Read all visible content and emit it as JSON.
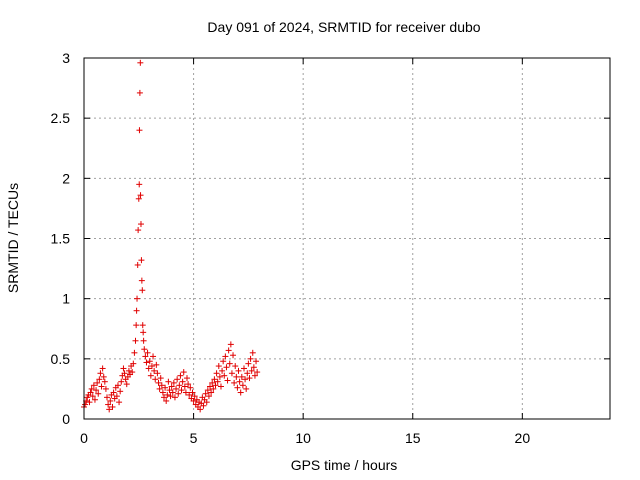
{
  "chart_data": {
    "type": "scatter",
    "title": "Day 091 of 2024, SRMTID for receiver dubo",
    "xlabel": "GPS time / hours",
    "ylabel": "SRMTID / TECUs",
    "xlim": [
      0,
      24
    ],
    "ylim": [
      0,
      3
    ],
    "xticks": [
      0,
      5,
      10,
      15,
      20
    ],
    "yticks": [
      0,
      0.5,
      1,
      1.5,
      2,
      2.5,
      3
    ],
    "ytick_labels": [
      "0",
      "0.5",
      "1",
      "1.5",
      "2",
      "2.5",
      "3"
    ],
    "grid": true,
    "marker": "+",
    "color": "#e00000",
    "series": [
      {
        "name": "SRMTID",
        "points": [
          [
            0.0,
            0.1
          ],
          [
            0.05,
            0.12
          ],
          [
            0.1,
            0.15
          ],
          [
            0.15,
            0.18
          ],
          [
            0.2,
            0.2
          ],
          [
            0.25,
            0.14
          ],
          [
            0.3,
            0.22
          ],
          [
            0.35,
            0.25
          ],
          [
            0.4,
            0.19
          ],
          [
            0.45,
            0.28
          ],
          [
            0.5,
            0.16
          ],
          [
            0.55,
            0.24
          ],
          [
            0.6,
            0.3
          ],
          [
            0.65,
            0.21
          ],
          [
            0.7,
            0.33
          ],
          [
            0.75,
            0.38
          ],
          [
            0.8,
            0.27
          ],
          [
            0.85,
            0.42
          ],
          [
            0.9,
            0.35
          ],
          [
            0.95,
            0.31
          ],
          [
            1.0,
            0.25
          ],
          [
            1.05,
            0.18
          ],
          [
            1.1,
            0.12
          ],
          [
            1.15,
            0.08
          ],
          [
            1.2,
            0.15
          ],
          [
            1.25,
            0.2
          ],
          [
            1.3,
            0.1
          ],
          [
            1.35,
            0.22
          ],
          [
            1.4,
            0.17
          ],
          [
            1.45,
            0.26
          ],
          [
            1.5,
            0.19
          ],
          [
            1.55,
            0.28
          ],
          [
            1.6,
            0.14
          ],
          [
            1.65,
            0.23
          ],
          [
            1.7,
            0.31
          ],
          [
            1.75,
            0.36
          ],
          [
            1.8,
            0.42
          ],
          [
            1.85,
            0.38
          ],
          [
            1.9,
            0.33
          ],
          [
            1.95,
            0.29
          ],
          [
            2.0,
            0.35
          ],
          [
            2.05,
            0.4
          ],
          [
            2.1,
            0.37
          ],
          [
            2.15,
            0.44
          ],
          [
            2.2,
            0.39
          ],
          [
            2.25,
            0.46
          ],
          [
            2.3,
            0.55
          ],
          [
            2.35,
            0.65
          ],
          [
            2.38,
            0.78
          ],
          [
            2.4,
            0.9
          ],
          [
            2.42,
            1.0
          ],
          [
            2.45,
            1.28
          ],
          [
            2.47,
            1.57
          ],
          [
            2.5,
            1.83
          ],
          [
            2.52,
            1.95
          ],
          [
            2.53,
            2.4
          ],
          [
            2.55,
            2.71
          ],
          [
            2.57,
            2.96
          ],
          [
            2.58,
            1.86
          ],
          [
            2.6,
            1.62
          ],
          [
            2.62,
            1.32
          ],
          [
            2.64,
            1.15
          ],
          [
            2.66,
            1.07
          ],
          [
            2.68,
            0.78
          ],
          [
            2.7,
            0.72
          ],
          [
            2.72,
            0.65
          ],
          [
            2.75,
            0.58
          ],
          [
            2.8,
            0.52
          ],
          [
            2.85,
            0.47
          ],
          [
            2.9,
            0.55
          ],
          [
            2.95,
            0.42
          ],
          [
            3.0,
            0.48
          ],
          [
            3.05,
            0.36
          ],
          [
            3.1,
            0.44
          ],
          [
            3.15,
            0.52
          ],
          [
            3.2,
            0.4
          ],
          [
            3.25,
            0.33
          ],
          [
            3.3,
            0.45
          ],
          [
            3.35,
            0.38
          ],
          [
            3.4,
            0.3
          ],
          [
            3.45,
            0.25
          ],
          [
            3.5,
            0.34
          ],
          [
            3.55,
            0.28
          ],
          [
            3.6,
            0.22
          ],
          [
            3.65,
            0.18
          ],
          [
            3.7,
            0.26
          ],
          [
            3.75,
            0.15
          ],
          [
            3.8,
            0.2
          ],
          [
            3.85,
            0.31
          ],
          [
            3.9,
            0.24
          ],
          [
            3.95,
            0.19
          ],
          [
            4.0,
            0.27
          ],
          [
            4.05,
            0.22
          ],
          [
            4.1,
            0.3
          ],
          [
            4.15,
            0.18
          ],
          [
            4.2,
            0.25
          ],
          [
            4.25,
            0.33
          ],
          [
            4.3,
            0.21
          ],
          [
            4.35,
            0.28
          ],
          [
            4.4,
            0.36
          ],
          [
            4.45,
            0.24
          ],
          [
            4.5,
            0.31
          ],
          [
            4.55,
            0.39
          ],
          [
            4.6,
            0.27
          ],
          [
            4.65,
            0.22
          ],
          [
            4.7,
            0.34
          ],
          [
            4.75,
            0.29
          ],
          [
            4.8,
            0.2
          ],
          [
            4.85,
            0.26
          ],
          [
            4.9,
            0.17
          ],
          [
            4.95,
            0.22
          ],
          [
            5.0,
            0.15
          ],
          [
            5.05,
            0.19
          ],
          [
            5.1,
            0.12
          ],
          [
            5.15,
            0.16
          ],
          [
            5.2,
            0.1
          ],
          [
            5.25,
            0.14
          ],
          [
            5.3,
            0.08
          ],
          [
            5.35,
            0.13
          ],
          [
            5.4,
            0.18
          ],
          [
            5.45,
            0.11
          ],
          [
            5.5,
            0.16
          ],
          [
            5.55,
            0.21
          ],
          [
            5.6,
            0.14
          ],
          [
            5.65,
            0.24
          ],
          [
            5.7,
            0.19
          ],
          [
            5.75,
            0.27
          ],
          [
            5.8,
            0.22
          ],
          [
            5.85,
            0.3
          ],
          [
            5.9,
            0.25
          ],
          [
            5.95,
            0.33
          ],
          [
            6.0,
            0.28
          ],
          [
            6.05,
            0.38
          ],
          [
            6.1,
            0.31
          ],
          [
            6.15,
            0.44
          ],
          [
            6.2,
            0.35
          ],
          [
            6.25,
            0.27
          ],
          [
            6.3,
            0.4
          ],
          [
            6.35,
            0.48
          ],
          [
            6.4,
            0.36
          ],
          [
            6.45,
            0.52
          ],
          [
            6.5,
            0.43
          ],
          [
            6.55,
            0.32
          ],
          [
            6.6,
            0.57
          ],
          [
            6.65,
            0.46
          ],
          [
            6.7,
            0.62
          ],
          [
            6.75,
            0.38
          ],
          [
            6.8,
            0.53
          ],
          [
            6.85,
            0.3
          ],
          [
            6.9,
            0.44
          ],
          [
            6.95,
            0.35
          ],
          [
            7.0,
            0.26
          ],
          [
            7.05,
            0.4
          ],
          [
            7.1,
            0.31
          ],
          [
            7.15,
            0.22
          ],
          [
            7.2,
            0.35
          ],
          [
            7.25,
            0.28
          ],
          [
            7.3,
            0.42
          ],
          [
            7.35,
            0.33
          ],
          [
            7.4,
            0.25
          ],
          [
            7.45,
            0.38
          ],
          [
            7.5,
            0.46
          ],
          [
            7.55,
            0.34
          ],
          [
            7.6,
            0.5
          ],
          [
            7.65,
            0.4
          ],
          [
            7.7,
            0.55
          ],
          [
            7.75,
            0.43
          ],
          [
            7.8,
            0.36
          ],
          [
            7.85,
            0.48
          ],
          [
            7.9,
            0.39
          ]
        ]
      }
    ]
  }
}
